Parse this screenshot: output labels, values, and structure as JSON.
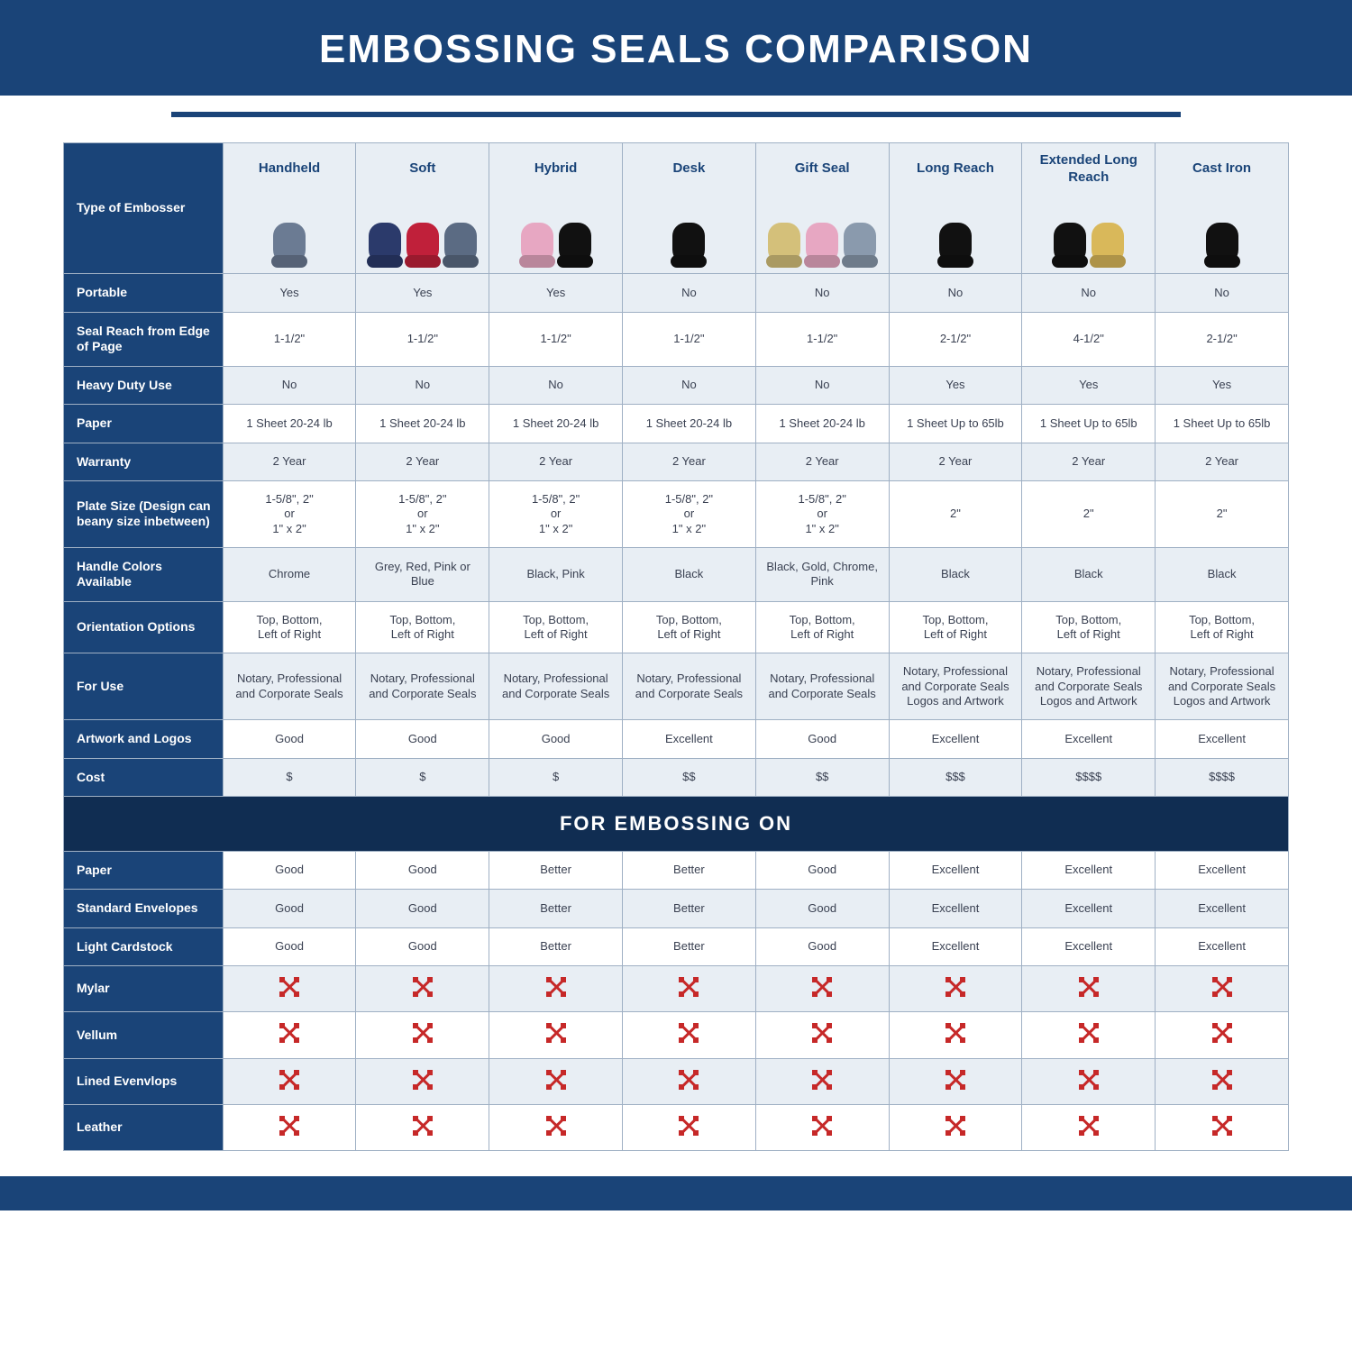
{
  "page": {
    "title": "EMBOSSING SEALS COMPARISON",
    "section_header": "FOR EMBOSSING ON",
    "colors": {
      "header_bg": "#1a4478",
      "header_text": "#ffffff",
      "alt_row_bg": "#e8eef4",
      "border": "#9fb0c4",
      "x_mark": "#c62828",
      "section_bg": "#102d52"
    },
    "fontsize": {
      "title": 44,
      "colhdr": 15,
      "rowlabel": 14,
      "cell": 13,
      "section": 22
    }
  },
  "columns": [
    {
      "label": "Handheld",
      "icon_colors": [
        "#6b7b93"
      ]
    },
    {
      "label": "Soft",
      "icon_colors": [
        "#2b3a6b",
        "#c0203a",
        "#5b6b83"
      ]
    },
    {
      "label": "Hybrid",
      "icon_colors": [
        "#e7a7c2",
        "#111111"
      ]
    },
    {
      "label": "Desk",
      "icon_colors": [
        "#111111"
      ]
    },
    {
      "label": "Gift Seal",
      "icon_colors": [
        "#d4c07a",
        "#e7a7c2",
        "#8a9aad"
      ]
    },
    {
      "label": "Long Reach",
      "icon_colors": [
        "#111111"
      ]
    },
    {
      "label": "Extended Long Reach",
      "icon_colors": [
        "#111111",
        "#d9b85a"
      ]
    },
    {
      "label": "Cast Iron",
      "icon_colors": [
        "#111111"
      ]
    }
  ],
  "rows_top": [
    {
      "label": "Type of Embosser",
      "header_row": true
    },
    {
      "label": "Portable",
      "shade": true,
      "cells": [
        "Yes",
        "Yes",
        "Yes",
        "No",
        "No",
        "No",
        "No",
        "No"
      ]
    },
    {
      "label": "Seal Reach from Edge of Page",
      "shade": false,
      "cells": [
        "1-1/2\"",
        "1-1/2\"",
        "1-1/2\"",
        "1-1/2\"",
        "1-1/2\"",
        "2-1/2\"",
        "4-1/2\"",
        "2-1/2\""
      ]
    },
    {
      "label": "Heavy Duty Use",
      "shade": true,
      "cells": [
        "No",
        "No",
        "No",
        "No",
        "No",
        "Yes",
        "Yes",
        "Yes"
      ]
    },
    {
      "label": "Paper",
      "shade": false,
      "cells": [
        "1 Sheet 20-24 lb",
        "1 Sheet 20-24 lb",
        "1 Sheet 20-24 lb",
        "1 Sheet 20-24 lb",
        "1 Sheet 20-24 lb",
        "1 Sheet Up to 65lb",
        "1 Sheet Up to 65lb",
        "1 Sheet Up to 65lb"
      ]
    },
    {
      "label": "Warranty",
      "shade": true,
      "cells": [
        "2 Year",
        "2 Year",
        "2 Year",
        "2 Year",
        "2 Year",
        "2 Year",
        "2 Year",
        "2 Year"
      ]
    },
    {
      "label": "Plate Size (Design can beany size inbetween)",
      "shade": false,
      "cells": [
        "1-5/8\", 2\"\nor\n1\" x 2\"",
        "1-5/8\", 2\"\nor\n1\" x 2\"",
        "1-5/8\", 2\"\nor\n1\" x 2\"",
        "1-5/8\", 2\"\nor\n1\" x 2\"",
        "1-5/8\", 2\"\nor\n1\" x 2\"",
        "2\"",
        "2\"",
        "2\""
      ]
    },
    {
      "label": "Handle Colors Available",
      "shade": true,
      "cells": [
        "Chrome",
        "Grey, Red, Pink or Blue",
        "Black, Pink",
        "Black",
        "Black, Gold, Chrome, Pink",
        "Black",
        "Black",
        "Black"
      ]
    },
    {
      "label": "Orientation Options",
      "shade": false,
      "cells": [
        "Top, Bottom,\nLeft of Right",
        "Top, Bottom,\nLeft of Right",
        "Top, Bottom,\nLeft of Right",
        "Top, Bottom,\nLeft of Right",
        "Top, Bottom,\nLeft of Right",
        "Top, Bottom,\nLeft of Right",
        "Top, Bottom,\nLeft of Right",
        "Top, Bottom,\nLeft of Right"
      ]
    },
    {
      "label": "For Use",
      "shade": true,
      "cells": [
        "Notary, Professional and Corporate Seals",
        "Notary, Professional and Corporate Seals",
        "Notary, Professional and Corporate Seals",
        "Notary, Professional and Corporate Seals",
        "Notary, Professional and Corporate Seals",
        "Notary, Professional and Corporate Seals Logos and Artwork",
        "Notary, Professional and Corporate Seals Logos and Artwork",
        "Notary, Professional and Corporate Seals Logos and Artwork"
      ]
    },
    {
      "label": "Artwork and Logos",
      "shade": false,
      "cells": [
        "Good",
        "Good",
        "Good",
        "Excellent",
        "Good",
        "Excellent",
        "Excellent",
        "Excellent"
      ]
    },
    {
      "label": "Cost",
      "shade": true,
      "cells": [
        "$",
        "$",
        "$",
        "$$",
        "$$",
        "$$$",
        "$$$$",
        "$$$$"
      ]
    }
  ],
  "rows_bottom": [
    {
      "label": "Paper",
      "shade": false,
      "cells": [
        "Good",
        "Good",
        "Better",
        "Better",
        "Good",
        "Excellent",
        "Excellent",
        "Excellent"
      ]
    },
    {
      "label": "Standard Envelopes",
      "shade": true,
      "cells": [
        "Good",
        "Good",
        "Better",
        "Better",
        "Good",
        "Excellent",
        "Excellent",
        "Excellent"
      ]
    },
    {
      "label": "Light Cardstock",
      "shade": false,
      "cells": [
        "Good",
        "Good",
        "Better",
        "Better",
        "Good",
        "Excellent",
        "Excellent",
        "Excellent"
      ]
    },
    {
      "label": "Mylar",
      "shade": true,
      "cells": [
        "X",
        "X",
        "X",
        "X",
        "X",
        "X",
        "X",
        "X"
      ]
    },
    {
      "label": "Vellum",
      "shade": false,
      "cells": [
        "X",
        "X",
        "X",
        "X",
        "X",
        "X",
        "X",
        "X"
      ]
    },
    {
      "label": "Lined Evenvlops",
      "shade": true,
      "cells": [
        "X",
        "X",
        "X",
        "X",
        "X",
        "X",
        "X",
        "X"
      ]
    },
    {
      "label": "Leather",
      "shade": false,
      "cells": [
        "X",
        "X",
        "X",
        "X",
        "X",
        "X",
        "X",
        "X"
      ]
    }
  ]
}
